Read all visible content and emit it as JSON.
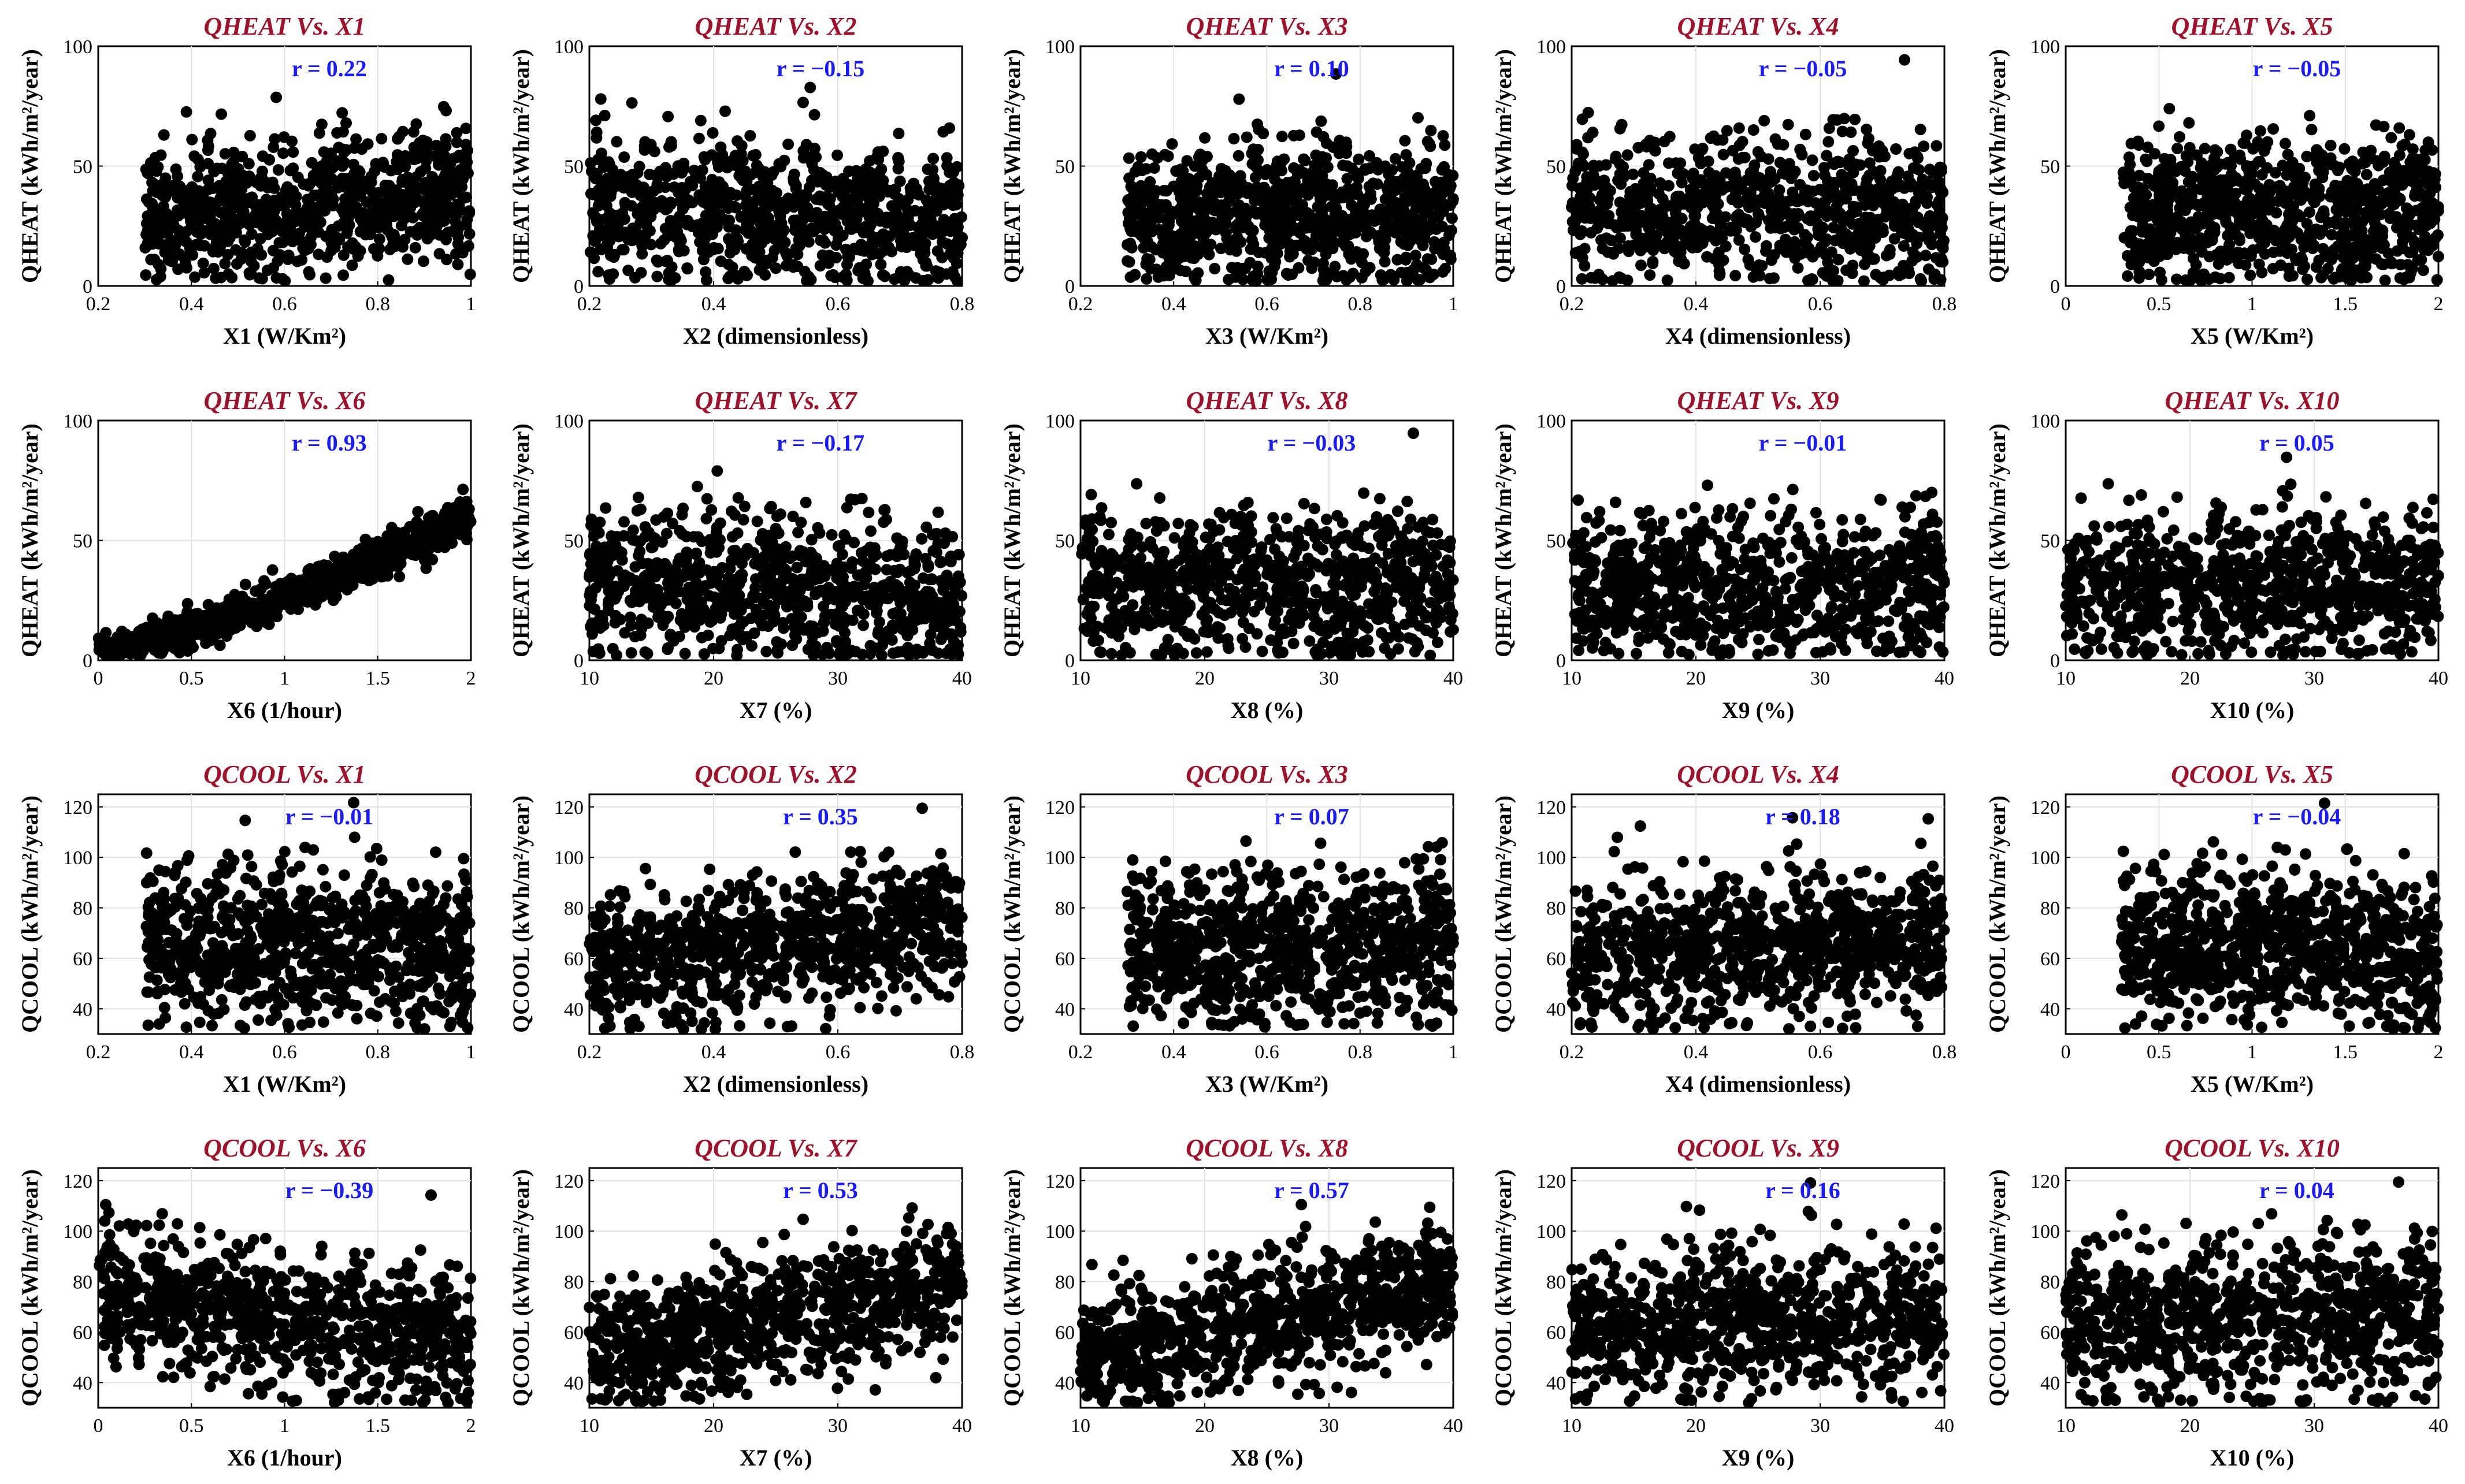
{
  "figure": {
    "background": "#ffffff",
    "title_color": "#a0112b",
    "r_color": "#1a1aff",
    "marker_color": "#000000"
  },
  "chart_data": [
    {
      "type": "scatter",
      "title": "QHEAT Vs. X1",
      "r_label": "r = 0.22",
      "r": 0.22,
      "xlabel": "X1 (W/Km²)",
      "ylabel": "QHEAT (kWh/m²/year)",
      "xlim": [
        0.2,
        1
      ],
      "ylim": [
        0,
        100
      ],
      "xticks": [
        "0.2",
        "0.4",
        "0.6",
        "0.8",
        "1"
      ],
      "yticks": [
        "0",
        "50",
        "100"
      ],
      "xrange": [
        0.3,
        1
      ],
      "x_shape": "linear",
      "mean": 33,
      "spread": 15,
      "noise": 14,
      "grid": true
    },
    {
      "type": "scatter",
      "title": "QHEAT Vs. X2",
      "r_label": "r = −0.15",
      "r": -0.15,
      "xlabel": "X2 (dimensionless)",
      "ylabel": "QHEAT (kWh/m²/year)",
      "xlim": [
        0.2,
        0.8
      ],
      "ylim": [
        0,
        100
      ],
      "xticks": [
        "0.2",
        "0.4",
        "0.6",
        "0.8"
      ],
      "yticks": [
        "0",
        "50",
        "100"
      ],
      "xrange": [
        0.2,
        0.8
      ],
      "x_shape": "linear",
      "mean": 30,
      "spread": 14,
      "noise": 15,
      "grid": true
    },
    {
      "type": "scatter",
      "title": "QHEAT Vs. X3",
      "r_label": "r = 0.10",
      "r": 0.1,
      "xlabel": "X3 (W/Km²)",
      "ylabel": "QHEAT (kWh/m²/year)",
      "xlim": [
        0.2,
        1
      ],
      "ylim": [
        0,
        100
      ],
      "xticks": [
        "0.2",
        "0.4",
        "0.6",
        "0.8",
        "1"
      ],
      "yticks": [
        "0",
        "50",
        "100"
      ],
      "xrange": [
        0.3,
        1
      ],
      "x_shape": "linear",
      "mean": 31,
      "spread": 14,
      "noise": 15,
      "grid": true
    },
    {
      "type": "scatter",
      "title": "QHEAT Vs. X4",
      "r_label": "r = −0.05",
      "r": -0.05,
      "xlabel": "X4 (dimensionless)",
      "ylabel": "QHEAT (kWh/m²/year)",
      "xlim": [
        0.2,
        0.8
      ],
      "ylim": [
        0,
        100
      ],
      "xticks": [
        "0.2",
        "0.4",
        "0.6",
        "0.8"
      ],
      "yticks": [
        "0",
        "50",
        "100"
      ],
      "xrange": [
        0.2,
        0.8
      ],
      "x_shape": "linear",
      "mean": 31,
      "spread": 14,
      "noise": 15,
      "grid": true
    },
    {
      "type": "scatter",
      "title": "QHEAT Vs. X5",
      "r_label": "r = −0.05",
      "r": -0.05,
      "xlabel": "X5 (W/Km²)",
      "ylabel": "QHEAT (kWh/m²/year)",
      "xlim": [
        0,
        2
      ],
      "ylim": [
        0,
        100
      ],
      "xticks": [
        "0",
        "0.5",
        "1",
        "1.5",
        "2"
      ],
      "yticks": [
        "0",
        "50",
        "100"
      ],
      "xrange": [
        0.3,
        2
      ],
      "x_shape": "linear",
      "mean": 31,
      "spread": 14,
      "noise": 15,
      "grid": true
    },
    {
      "type": "scatter",
      "title": "QHEAT Vs. X6",
      "r_label": "r = 0.93",
      "r": 0.93,
      "xlabel": "X6 (1/hour)",
      "ylabel": "QHEAT (kWh/m²/year)",
      "xlim": [
        0,
        2
      ],
      "ylim": [
        0,
        100
      ],
      "xticks": [
        "0",
        "0.5",
        "1",
        "1.5",
        "2"
      ],
      "yticks": [
        "0",
        "50",
        "100"
      ],
      "xrange": [
        0,
        2
      ],
      "x_shape": "convex",
      "mean": 30,
      "spread": 27,
      "noise": 4,
      "grid": true
    },
    {
      "type": "scatter",
      "title": "QHEAT Vs. X7",
      "r_label": "r = −0.17",
      "r": -0.17,
      "xlabel": "X7 (%)",
      "ylabel": "QHEAT (kWh/m²/year)",
      "xlim": [
        10,
        40
      ],
      "ylim": [
        0,
        100
      ],
      "xticks": [
        "10",
        "20",
        "30",
        "40"
      ],
      "yticks": [
        "0",
        "50",
        "100"
      ],
      "xrange": [
        10,
        40
      ],
      "x_shape": "linear",
      "mean": 30,
      "spread": 14,
      "noise": 15,
      "grid": true
    },
    {
      "type": "scatter",
      "title": "QHEAT Vs. X8",
      "r_label": "r = −0.03",
      "r": -0.03,
      "xlabel": "X8 (%)",
      "ylabel": "QHEAT (kWh/m²/year)",
      "xlim": [
        10,
        40
      ],
      "ylim": [
        0,
        100
      ],
      "xticks": [
        "10",
        "20",
        "30",
        "40"
      ],
      "yticks": [
        "0",
        "50",
        "100"
      ],
      "xrange": [
        10,
        40
      ],
      "x_shape": "linear",
      "mean": 31,
      "spread": 14,
      "noise": 15,
      "grid": true
    },
    {
      "type": "scatter",
      "title": "QHEAT Vs. X9",
      "r_label": "r = −0.01",
      "r": -0.01,
      "xlabel": "X9 (%)",
      "ylabel": "QHEAT (kWh/m²/year)",
      "xlim": [
        10,
        40
      ],
      "ylim": [
        0,
        100
      ],
      "xticks": [
        "10",
        "20",
        "30",
        "40"
      ],
      "yticks": [
        "0",
        "50",
        "100"
      ],
      "xrange": [
        10,
        40
      ],
      "x_shape": "linear",
      "mean": 31,
      "spread": 14,
      "noise": 15,
      "grid": true
    },
    {
      "type": "scatter",
      "title": "QHEAT Vs. X10",
      "r_label": "r = 0.05",
      "r": 0.05,
      "xlabel": "X10 (%)",
      "ylabel": "QHEAT (kWh/m²/year)",
      "xlim": [
        10,
        40
      ],
      "ylim": [
        0,
        100
      ],
      "xticks": [
        "10",
        "20",
        "30",
        "40"
      ],
      "yticks": [
        "0",
        "50",
        "100"
      ],
      "xrange": [
        10,
        40
      ],
      "x_shape": "linear",
      "mean": 31,
      "spread": 14,
      "noise": 15,
      "grid": true
    },
    {
      "type": "scatter",
      "title": "QCOOL Vs. X1",
      "r_label": "r = −0.01",
      "r": -0.01,
      "xlabel": "X1 (W/Km²)",
      "ylabel": "QCOOL (kWh/m²/year)",
      "xlim": [
        0.2,
        1
      ],
      "ylim": [
        30,
        125
      ],
      "xticks": [
        "0.2",
        "0.4",
        "0.6",
        "0.8",
        "1"
      ],
      "yticks": [
        "40",
        "60",
        "80",
        "100",
        "120"
      ],
      "xrange": [
        0.3,
        1
      ],
      "x_shape": "linear",
      "mean": 65,
      "spread": 14,
      "noise": 15,
      "grid": true
    },
    {
      "type": "scatter",
      "title": "QCOOL Vs. X2",
      "r_label": "r = 0.35",
      "r": 0.35,
      "xlabel": "X2 (dimensionless)",
      "ylabel": "QCOOL (kWh/m²/year)",
      "xlim": [
        0.2,
        0.8
      ],
      "ylim": [
        30,
        125
      ],
      "xticks": [
        "0.2",
        "0.4",
        "0.6",
        "0.8"
      ],
      "yticks": [
        "40",
        "60",
        "80",
        "100",
        "120"
      ],
      "xrange": [
        0.2,
        0.8
      ],
      "x_shape": "linear",
      "mean": 65,
      "spread": 14,
      "noise": 13,
      "grid": true
    },
    {
      "type": "scatter",
      "title": "QCOOL Vs. X3",
      "r_label": "r = 0.07",
      "r": 0.07,
      "xlabel": "X3 (W/Km²)",
      "ylabel": "QCOOL (kWh/m²/year)",
      "xlim": [
        0.2,
        1
      ],
      "ylim": [
        30,
        125
      ],
      "xticks": [
        "0.2",
        "0.4",
        "0.6",
        "0.8",
        "1"
      ],
      "yticks": [
        "40",
        "60",
        "80",
        "100",
        "120"
      ],
      "xrange": [
        0.3,
        1
      ],
      "x_shape": "linear",
      "mean": 65,
      "spread": 14,
      "noise": 15,
      "grid": true
    },
    {
      "type": "scatter",
      "title": "QCOOL Vs. X4",
      "r_label": "r = 0.18",
      "r": 0.18,
      "xlabel": "X4 (dimensionless)",
      "ylabel": "QCOOL (kWh/m²/year)",
      "xlim": [
        0.2,
        0.8
      ],
      "ylim": [
        30,
        125
      ],
      "xticks": [
        "0.2",
        "0.4",
        "0.6",
        "0.8"
      ],
      "yticks": [
        "40",
        "60",
        "80",
        "100",
        "120"
      ],
      "xrange": [
        0.2,
        0.8
      ],
      "x_shape": "linear",
      "mean": 65,
      "spread": 14,
      "noise": 14,
      "grid": true
    },
    {
      "type": "scatter",
      "title": "QCOOL Vs. X5",
      "r_label": "r = −0.04",
      "r": -0.04,
      "xlabel": "X5 (W/Km²)",
      "ylabel": "QCOOL (kWh/m²/year)",
      "xlim": [
        0,
        2
      ],
      "ylim": [
        30,
        125
      ],
      "xticks": [
        "0",
        "0.5",
        "1",
        "1.5",
        "2"
      ],
      "yticks": [
        "40",
        "60",
        "80",
        "100",
        "120"
      ],
      "xrange": [
        0.3,
        2
      ],
      "x_shape": "linear",
      "mean": 65,
      "spread": 14,
      "noise": 15,
      "grid": true
    },
    {
      "type": "scatter",
      "title": "QCOOL Vs. X6",
      "r_label": "r = −0.39",
      "r": -0.39,
      "xlabel": "X6 (1/hour)",
      "ylabel": "QCOOL (kWh/m²/year)",
      "xlim": [
        0,
        2
      ],
      "ylim": [
        30,
        125
      ],
      "xticks": [
        "0",
        "0.5",
        "1",
        "1.5",
        "2"
      ],
      "yticks": [
        "40",
        "60",
        "80",
        "100",
        "120"
      ],
      "xrange": [
        0,
        2
      ],
      "x_shape": "linear",
      "mean": 66,
      "spread": 14,
      "noise": 13,
      "grid": true
    },
    {
      "type": "scatter",
      "title": "QCOOL Vs. X7",
      "r_label": "r = 0.53",
      "r": 0.53,
      "xlabel": "X7 (%)",
      "ylabel": "QCOOL (kWh/m²/year)",
      "xlim": [
        10,
        40
      ],
      "ylim": [
        30,
        125
      ],
      "xticks": [
        "10",
        "20",
        "30",
        "40"
      ],
      "yticks": [
        "40",
        "60",
        "80",
        "100",
        "120"
      ],
      "xrange": [
        10,
        40
      ],
      "x_shape": "linear",
      "mean": 65,
      "spread": 15,
      "noise": 12,
      "grid": true
    },
    {
      "type": "scatter",
      "title": "QCOOL Vs. X8",
      "r_label": "r = 0.57",
      "r": 0.57,
      "xlabel": "X8 (%)",
      "ylabel": "QCOOL (kWh/m²/year)",
      "xlim": [
        10,
        40
      ],
      "ylim": [
        30,
        125
      ],
      "xticks": [
        "10",
        "20",
        "30",
        "40"
      ],
      "yticks": [
        "40",
        "60",
        "80",
        "100",
        "120"
      ],
      "xrange": [
        10,
        40
      ],
      "x_shape": "linear",
      "mean": 65,
      "spread": 15,
      "noise": 12,
      "grid": true
    },
    {
      "type": "scatter",
      "title": "QCOOL Vs. X9",
      "r_label": "r = 0.16",
      "r": 0.16,
      "xlabel": "X9 (%)",
      "ylabel": "QCOOL (kWh/m²/year)",
      "xlim": [
        10,
        40
      ],
      "ylim": [
        30,
        125
      ],
      "xticks": [
        "10",
        "20",
        "30",
        "40"
      ],
      "yticks": [
        "40",
        "60",
        "80",
        "100",
        "120"
      ],
      "xrange": [
        10,
        40
      ],
      "x_shape": "linear",
      "mean": 65,
      "spread": 14,
      "noise": 14,
      "grid": true
    },
    {
      "type": "scatter",
      "title": "QCOOL Vs. X10",
      "r_label": "r = 0.04",
      "r": 0.04,
      "xlabel": "X10 (%)",
      "ylabel": "QCOOL (kWh/m²/year)",
      "xlim": [
        10,
        40
      ],
      "ylim": [
        30,
        125
      ],
      "xticks": [
        "10",
        "20",
        "30",
        "40"
      ],
      "yticks": [
        "40",
        "60",
        "80",
        "100",
        "120"
      ],
      "xrange": [
        10,
        40
      ],
      "x_shape": "linear",
      "mean": 65,
      "spread": 14,
      "noise": 15,
      "grid": true
    }
  ]
}
